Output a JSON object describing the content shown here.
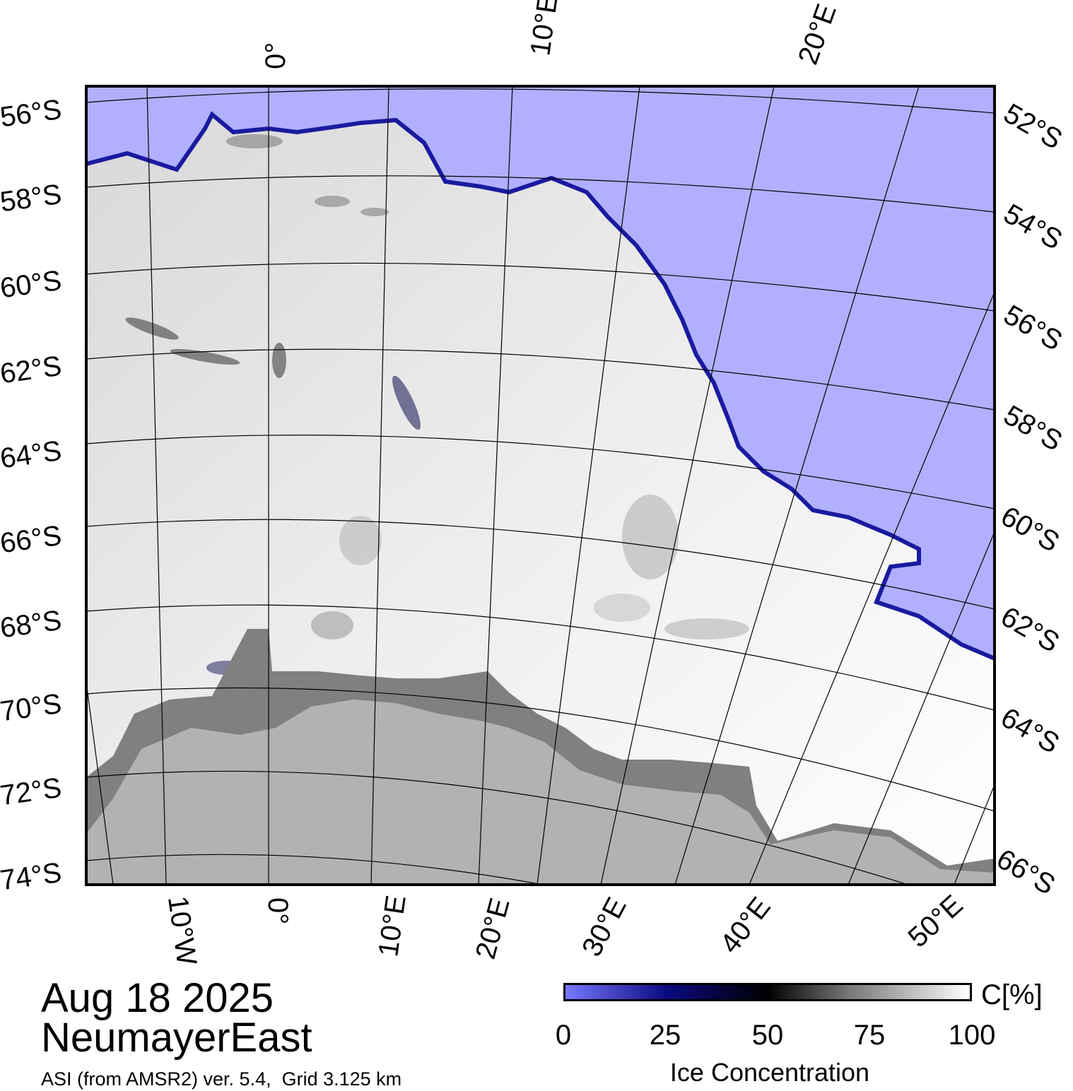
{
  "title": "Aug 18 2025",
  "region": "NeumayerEast",
  "source": "ASI (from AMSR2) ver. 5.4,  Grid 3.125 km",
  "colorbar": {
    "ticks": [
      "0",
      "25",
      "50",
      "75",
      "100"
    ],
    "unit": "C[%]",
    "title": "Ice Concentration",
    "colors": [
      "#7878ff",
      "#0a0a80",
      "#000000",
      "#777777",
      "#ffffff"
    ]
  },
  "colors": {
    "open_water": "#b0b0ff",
    "land": "#b2b2b2",
    "ice_shelf": "#808080",
    "ice_edge": "#1a1aa0"
  },
  "axes": {
    "left_lat_labels": [
      "56°S",
      "58°S",
      "60°S",
      "62°S",
      "64°S",
      "66°S",
      "68°S",
      "70°S",
      "72°S",
      "74°S"
    ],
    "right_lat_labels": [
      "52°S",
      "54°S",
      "56°S",
      "58°S",
      "60°S",
      "62°S",
      "64°S",
      "66°S"
    ],
    "top_lon_labels": [
      "0°",
      "10°E",
      "20°E"
    ],
    "bottom_lon_labels": [
      "10°W",
      "0°",
      "10°E",
      "20°E",
      "30°E",
      "40°E",
      "50°E"
    ]
  }
}
